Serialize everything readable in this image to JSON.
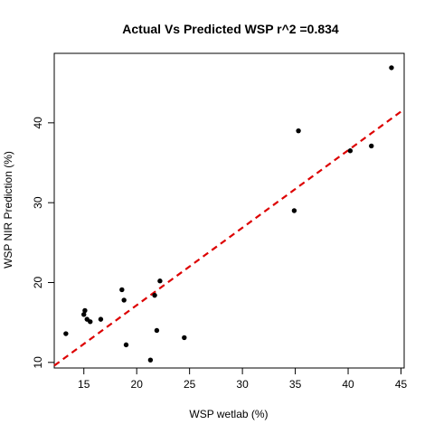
{
  "chart_data": {
    "type": "scatter",
    "title": "Actual Vs Predicted WSP r^2 =0.834",
    "xlabel": "WSP wetlab (%)",
    "ylabel": "WSP NIR Prediction (%)",
    "xlim": [
      12.2,
      45.3
    ],
    "ylim": [
      9.3,
      48.7
    ],
    "xticks": [
      15,
      20,
      25,
      30,
      35,
      40,
      45
    ],
    "yticks": [
      10,
      20,
      30,
      40
    ],
    "grid": false,
    "points": [
      {
        "x": 13.3,
        "y": 13.6
      },
      {
        "x": 15.0,
        "y": 16.0
      },
      {
        "x": 15.1,
        "y": 16.5
      },
      {
        "x": 15.3,
        "y": 15.4
      },
      {
        "x": 15.6,
        "y": 15.1
      },
      {
        "x": 16.6,
        "y": 15.4
      },
      {
        "x": 18.6,
        "y": 19.1
      },
      {
        "x": 18.8,
        "y": 17.8
      },
      {
        "x": 19.0,
        "y": 12.2
      },
      {
        "x": 21.3,
        "y": 10.3
      },
      {
        "x": 21.7,
        "y": 18.4
      },
      {
        "x": 21.9,
        "y": 14.0
      },
      {
        "x": 22.2,
        "y": 20.2
      },
      {
        "x": 24.5,
        "y": 13.1
      },
      {
        "x": 34.9,
        "y": 29.0
      },
      {
        "x": 35.3,
        "y": 39.0
      },
      {
        "x": 40.2,
        "y": 36.5
      },
      {
        "x": 42.2,
        "y": 37.1
      },
      {
        "x": 44.1,
        "y": 46.9
      }
    ],
    "fit_line": {
      "x": [
        12.2,
        45.3
      ],
      "y": [
        9.6,
        41.7
      ],
      "color": "#dd0000",
      "style": "dashed"
    },
    "point_color": "#000000"
  }
}
